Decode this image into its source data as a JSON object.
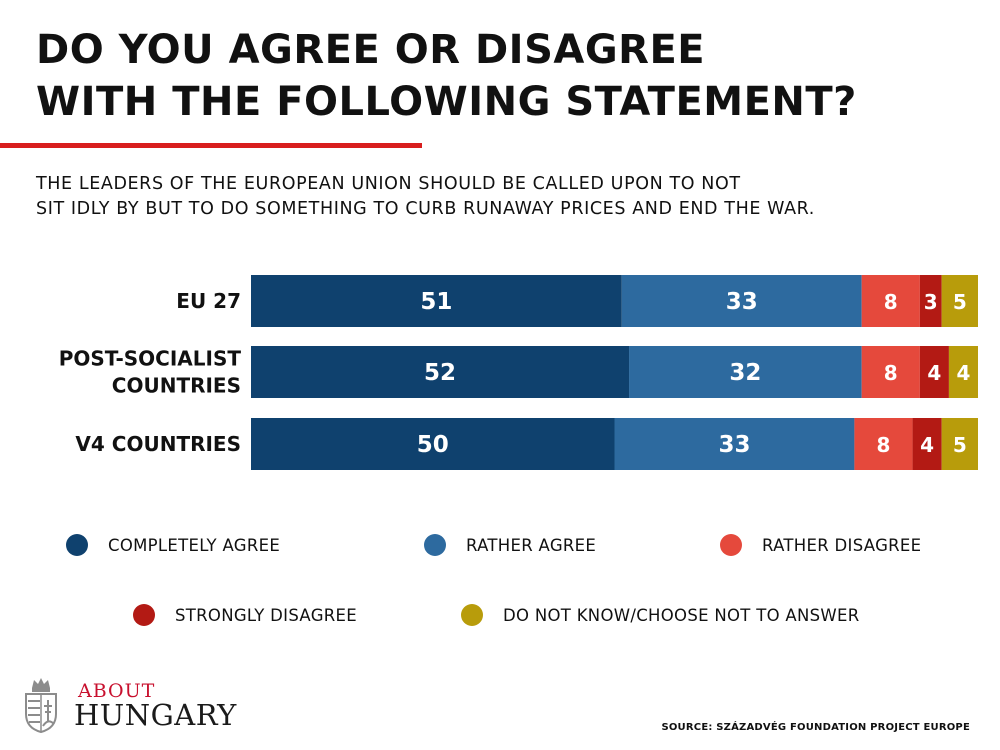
{
  "title": "DO YOU AGREE OR DISAGREE\nWITH THE FOLLOWING STATEMENT?",
  "subtitle": "THE LEADERS OF THE EUROPEAN UNION SHOULD BE CALLED UPON TO NOT\nSIT IDLY BY BUT TO DO SOMETHING TO CURB RUNAWAY PRICES AND END THE WAR.",
  "accent_color": "#d81e1e",
  "chart_data": {
    "type": "bar",
    "orientation": "horizontal",
    "stacked": true,
    "title": "",
    "xlabel": "",
    "ylabel": "",
    "grid": false,
    "legend_position": "bottom",
    "categories": [
      [
        "EU 27"
      ],
      [
        "POST-SOCIALIST",
        "COUNTRIES"
      ],
      [
        "V4 COUNTRIES"
      ]
    ],
    "series": [
      {
        "name": "COMPLETELY AGREE",
        "color": "#0f416e",
        "values": [
          51,
          52,
          50
        ]
      },
      {
        "name": "RATHER AGREE",
        "color": "#2d6a9f",
        "values": [
          33,
          32,
          33
        ]
      },
      {
        "name": "RATHER DISAGREE",
        "color": "#e5493c",
        "values": [
          8,
          8,
          8
        ]
      },
      {
        "name": "STRONGLY DISAGREE",
        "color": "#b31a14",
        "values": [
          3,
          4,
          4
        ]
      },
      {
        "name": "DO NOT KNOW/CHOOSE NOT TO ANSWER",
        "color": "#b89c0b",
        "values": [
          5,
          4,
          5
        ]
      }
    ]
  },
  "logo": {
    "about": "ABOUT",
    "hungary": "HUNGARY",
    "about_color": "#c8102e",
    "emblem_icon": "hungarian-coat-of-arms-icon"
  },
  "source": "SOURCE: SZÁZADVÉG FOUNDATION PROJECT EUROPE"
}
